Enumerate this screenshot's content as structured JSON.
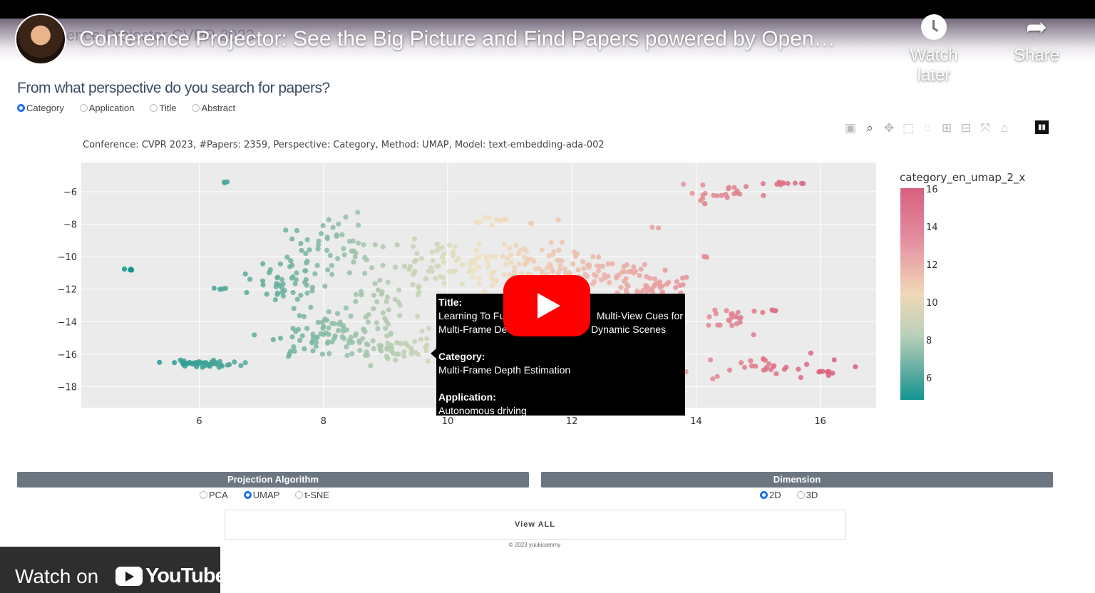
{
  "video": {
    "ghost_title": "ence Projector CVPR 2023",
    "title": "Conference Projector: See the Big Picture and Find Papers powered by Open…",
    "watch_later": "Watch later",
    "share": "Share",
    "watch_on": "Watch on",
    "youtube": "YouTube"
  },
  "app": {
    "question": "From what perspective do you search for papers?",
    "perspectives": [
      "Category",
      "Application",
      "Title",
      "Abstract"
    ],
    "perspective_selected": "Category",
    "subtitle": "Conference: CVPR 2023, #Papers: 2359, Perspective: Category, Method: UMAP, Model: text-embedding-ada-002",
    "modebar_icons": [
      "camera-icon",
      "zoom-icon",
      "pan-icon",
      "box-select-icon",
      "lasso-icon",
      "zoom-in-icon",
      "zoom-out-icon",
      "autoscale-icon",
      "reset-axes-icon"
    ],
    "projection": {
      "label": "Projection Algorithm",
      "options": [
        "PCA",
        "UMAP",
        "t-SNE"
      ],
      "selected": "UMAP"
    },
    "dimension": {
      "label": "Dimension",
      "options": [
        "2D",
        "3D"
      ],
      "selected": "2D"
    },
    "view_all": "View ALL",
    "copyright": "© 2023 yuukicammy"
  },
  "tooltip": {
    "title_label": "Title:",
    "title_line1_a": "Learning To Fu",
    "title_line1_b": "Multi-View Cues for",
    "title_line2_a": "Multi-Frame De",
    "title_line2_b": "Dynamic Scenes",
    "category_label": "Category:",
    "category_value": "Multi-Frame Depth Estimation",
    "application_label": "Application:",
    "application_value": "Autonomous driving"
  },
  "chart_data": {
    "type": "scatter",
    "x_ticks": [
      6,
      8,
      10,
      12,
      14,
      16
    ],
    "y_ticks": [
      -6,
      -8,
      -10,
      -12,
      -14,
      -16,
      -18
    ],
    "xlim": [
      4.1,
      16.9
    ],
    "ylim": [
      -19.3,
      -4.2
    ],
    "colorbar_title": "category_en_umap_2_x",
    "colorbar_ticks": [
      16,
      14,
      12,
      10,
      8,
      6
    ],
    "colorbar_range": [
      4.9,
      16.1
    ],
    "colors": {
      "low": "#129590",
      "mid": "#f0e2c0",
      "high": "#d8607e"
    },
    "clusters": [
      {
        "x": 4.85,
        "y": -10.8,
        "n": 5,
        "sx": 0.05,
        "sy": 0.05
      },
      {
        "x": 6.42,
        "y": -5.4,
        "n": 3,
        "sx": 0.04,
        "sy": 0.03
      },
      {
        "x": 6.35,
        "y": -12.0,
        "n": 4,
        "sx": 0.08,
        "sy": 0.05
      },
      {
        "x": 6.1,
        "y": -16.6,
        "n": 45,
        "sx": 0.28,
        "sy": 0.1
      },
      {
        "x": 7.4,
        "y": -11.6,
        "n": 45,
        "sx": 0.3,
        "sy": 0.6
      },
      {
        "x": 8.2,
        "y": -9.5,
        "n": 55,
        "sx": 0.45,
        "sy": 0.9
      },
      {
        "x": 8.4,
        "y": -15.0,
        "n": 110,
        "sx": 0.6,
        "sy": 0.7
      },
      {
        "x": 9.0,
        "y": -12.5,
        "n": 35,
        "sx": 0.5,
        "sy": 0.9
      },
      {
        "x": 9.8,
        "y": -10.5,
        "n": 50,
        "sx": 0.45,
        "sy": 0.8
      },
      {
        "x": 9.4,
        "y": -15.8,
        "n": 25,
        "sx": 0.3,
        "sy": 0.25
      },
      {
        "x": 11.2,
        "y": -10.5,
        "n": 80,
        "sx": 0.6,
        "sy": 0.7
      },
      {
        "x": 11.0,
        "y": -7.8,
        "n": 12,
        "sx": 0.35,
        "sy": 0.15
      },
      {
        "x": 12.5,
        "y": -11.2,
        "n": 95,
        "sx": 0.6,
        "sy": 0.55
      },
      {
        "x": 13.3,
        "y": -12.0,
        "n": 20,
        "sx": 0.3,
        "sy": 0.2
      },
      {
        "x": 13.4,
        "y": -8.2,
        "n": 2,
        "sx": 0.08,
        "sy": 0.03
      },
      {
        "x": 14.5,
        "y": -6.0,
        "n": 20,
        "sx": 0.35,
        "sy": 0.3
      },
      {
        "x": 14.1,
        "y": -6.9,
        "n": 4,
        "sx": 0.05,
        "sy": 0.25
      },
      {
        "x": 15.5,
        "y": -5.5,
        "n": 10,
        "sx": 0.12,
        "sy": 0.05
      },
      {
        "x": 14.15,
        "y": -10.0,
        "n": 3,
        "sx": 0.04,
        "sy": 0.03
      },
      {
        "x": 14.6,
        "y": -13.8,
        "n": 22,
        "sx": 0.3,
        "sy": 0.3
      },
      {
        "x": 15.3,
        "y": -13.3,
        "n": 4,
        "sx": 0.06,
        "sy": 0.03
      },
      {
        "x": 15.0,
        "y": -16.7,
        "n": 30,
        "sx": 0.6,
        "sy": 0.45
      },
      {
        "x": 16.1,
        "y": -17.1,
        "n": 6,
        "sx": 0.1,
        "sy": 0.04
      },
      {
        "x": 14.95,
        "y": -14.8,
        "n": 1,
        "sx": 0.02,
        "sy": 0.02
      }
    ]
  }
}
